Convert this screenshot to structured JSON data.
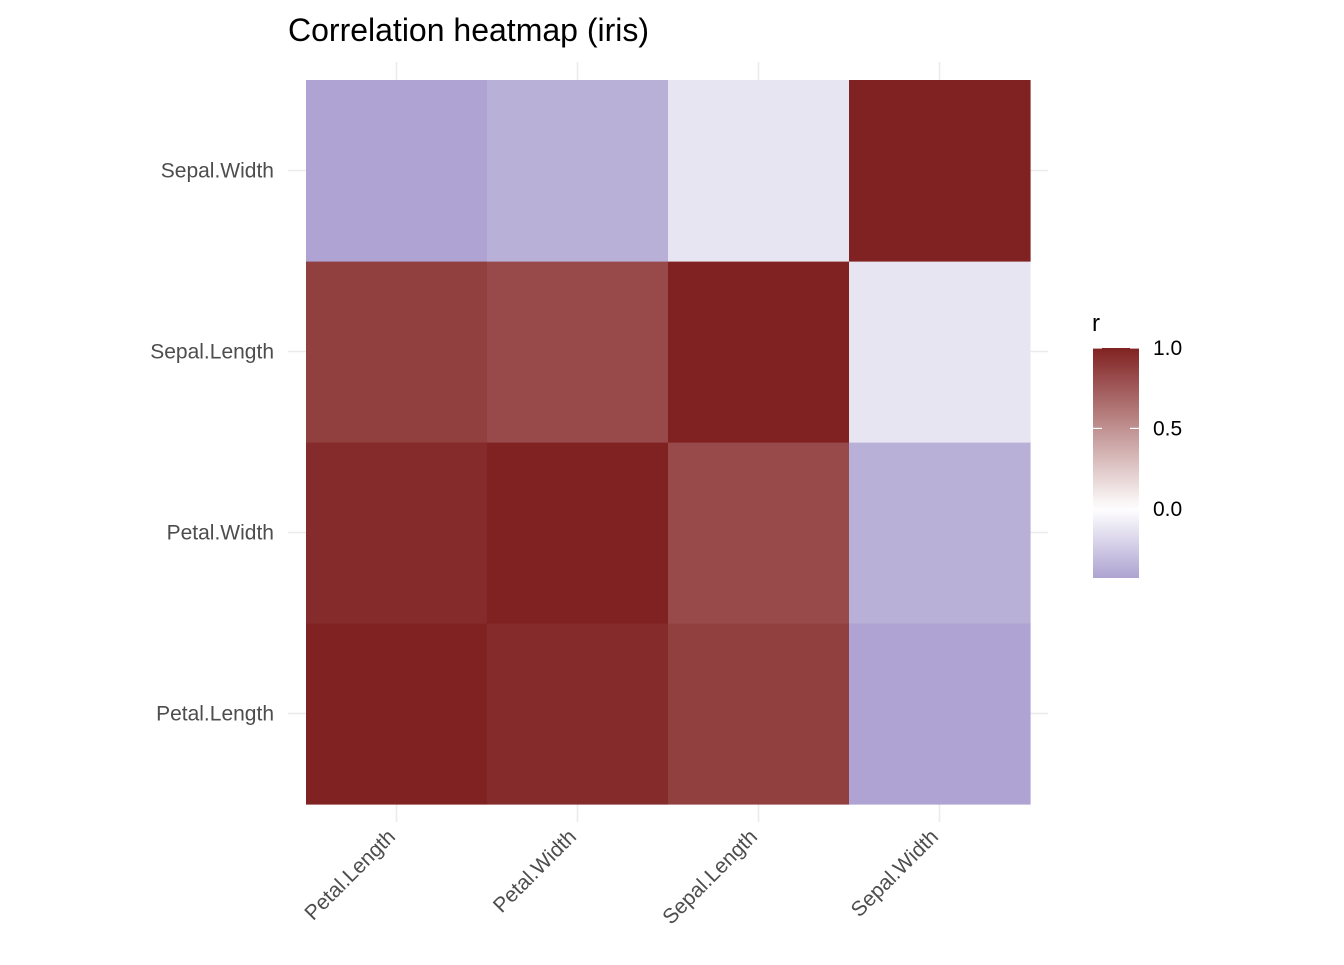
{
  "chart_data": {
    "type": "heatmap",
    "title": "Correlation heatmap (iris)",
    "xlabel": "",
    "ylabel": "",
    "x_categories": [
      "Petal.Length",
      "Petal.Width",
      "Sepal.Length",
      "Sepal.Width"
    ],
    "y_categories": [
      "Petal.Length",
      "Petal.Width",
      "Sepal.Length",
      "Sepal.Width"
    ],
    "cells": [
      {
        "x": "Petal.Length",
        "y": "Petal.Length",
        "value": 1.0
      },
      {
        "x": "Petal.Width",
        "y": "Petal.Length",
        "value": 0.96
      },
      {
        "x": "Sepal.Length",
        "y": "Petal.Length",
        "value": 0.87
      },
      {
        "x": "Sepal.Width",
        "y": "Petal.Length",
        "value": -0.43
      },
      {
        "x": "Petal.Length",
        "y": "Petal.Width",
        "value": 0.96
      },
      {
        "x": "Petal.Width",
        "y": "Petal.Width",
        "value": 1.0
      },
      {
        "x": "Sepal.Length",
        "y": "Petal.Width",
        "value": 0.82
      },
      {
        "x": "Sepal.Width",
        "y": "Petal.Width",
        "value": -0.37
      },
      {
        "x": "Petal.Length",
        "y": "Sepal.Length",
        "value": 0.87
      },
      {
        "x": "Petal.Width",
        "y": "Sepal.Length",
        "value": 0.82
      },
      {
        "x": "Sepal.Length",
        "y": "Sepal.Length",
        "value": 1.0
      },
      {
        "x": "Sepal.Width",
        "y": "Sepal.Length",
        "value": -0.12
      },
      {
        "x": "Petal.Length",
        "y": "Sepal.Width",
        "value": -0.43
      },
      {
        "x": "Petal.Width",
        "y": "Sepal.Width",
        "value": -0.37
      },
      {
        "x": "Sepal.Length",
        "y": "Sepal.Width",
        "value": -0.12
      },
      {
        "x": "Sepal.Width",
        "y": "Sepal.Width",
        "value": 1.0
      }
    ],
    "legend": {
      "title": "r",
      "ticks": [
        1.0,
        0.5,
        0.0
      ],
      "tick_labels": [
        "1.0",
        "0.5",
        "0.0"
      ],
      "range": [
        -0.43,
        1.0
      ],
      "position": "right"
    },
    "color_scale": {
      "low": "#aea3d2",
      "mid": "#ffffff",
      "high": "#812222",
      "midpoint": 0
    },
    "grid": true
  }
}
